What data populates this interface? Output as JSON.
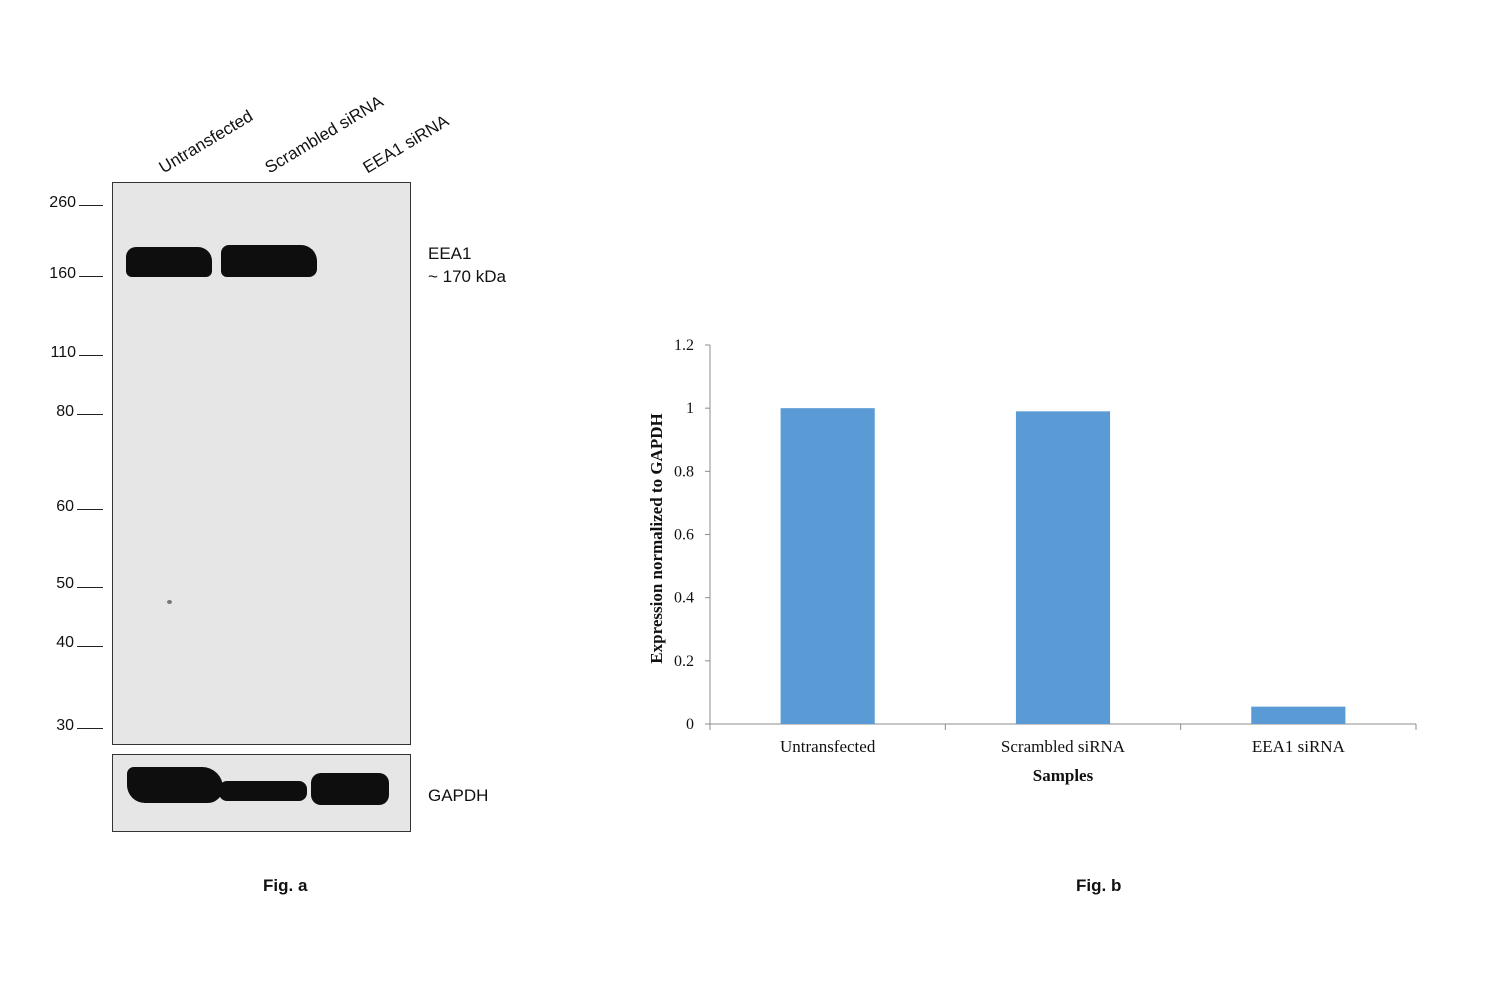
{
  "fig_a": {
    "lanes": [
      "Untransfected",
      "Scrambled siRNA",
      "EEA1 siRNA"
    ],
    "markers": [
      "260",
      "160",
      "110",
      "80",
      "60",
      "50",
      "40",
      "30"
    ],
    "eea1_label": "EEA1",
    "eea1_size": "~ 170 kDa",
    "gapdh_label": "GAPDH",
    "caption": "Fig. a"
  },
  "fig_b": {
    "caption": "Fig. b"
  },
  "chart_data": {
    "type": "bar",
    "categories": [
      "Untransfected",
      "Scrambled siRNA",
      "EEA1 siRNA"
    ],
    "values": [
      1.0,
      0.99,
      0.055
    ],
    "xlabel": "Samples",
    "ylabel": "Expression normalized to GAPDH",
    "ylim": [
      0,
      1.2
    ],
    "yticks": [
      "0",
      "0.2",
      "0.4",
      "0.6",
      "0.8",
      "1",
      "1.2"
    ],
    "bar_color": "#5b9bd5",
    "grid": false,
    "legend": "none"
  }
}
